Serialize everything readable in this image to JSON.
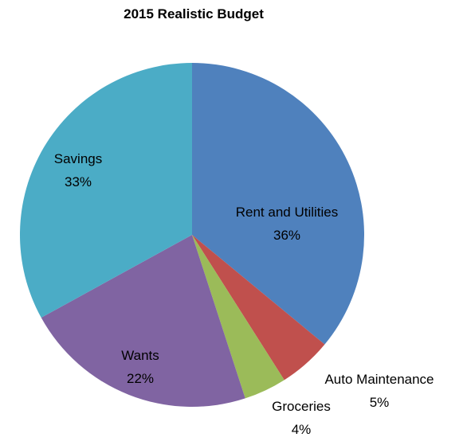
{
  "chart_data": {
    "type": "pie",
    "title": "2015 Realistic Budget",
    "slices": [
      {
        "label": "Rent and Utilities",
        "percent_label": "36%",
        "value": 36,
        "color": "#4f81bd"
      },
      {
        "label": "Auto Maintenance",
        "percent_label": "5%",
        "value": 5,
        "color": "#c0504d"
      },
      {
        "label": "Groceries",
        "percent_label": "4%",
        "value": 4,
        "color": "#9bbb59"
      },
      {
        "label": "Wants",
        "percent_label": "22%",
        "value": 22,
        "color": "#8064a2"
      },
      {
        "label": "Savings",
        "percent_label": "33%",
        "value": 33,
        "color": "#4bacc6"
      }
    ],
    "start": "12 o'clock",
    "direction": "clockwise",
    "legend": "none"
  }
}
